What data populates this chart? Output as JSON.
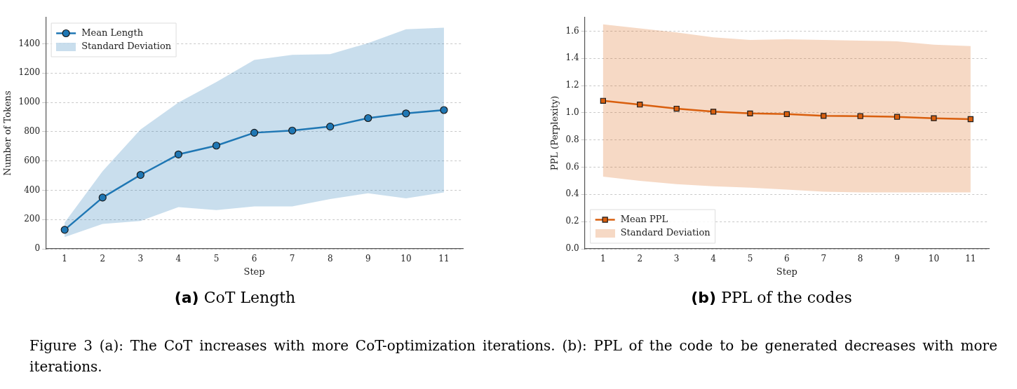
{
  "chart_data": [
    {
      "type": "line",
      "title": "(a) CoT Length",
      "xlabel": "Step",
      "ylabel": "Number of Tokens",
      "x": [
        1,
        2,
        3,
        4,
        5,
        6,
        7,
        8,
        9,
        10,
        11
      ],
      "series": [
        {
          "name": "Mean Length",
          "color": "#1f77b4",
          "marker": "circle",
          "values": [
            130,
            350,
            505,
            645,
            705,
            793,
            808,
            835,
            893,
            925,
            948
          ],
          "lower": [
            80,
            170,
            190,
            285,
            265,
            290,
            290,
            340,
            380,
            345,
            385
          ],
          "upper": [
            180,
            530,
            815,
            1000,
            1140,
            1290,
            1325,
            1330,
            1405,
            1500,
            1510
          ]
        }
      ],
      "xlim": [
        0.5,
        11.5
      ],
      "xticks": [
        1,
        2,
        3,
        4,
        5,
        6,
        7,
        8,
        9,
        10,
        11
      ],
      "ylim": [
        0,
        1580
      ],
      "yticks": [
        0,
        200,
        400,
        600,
        800,
        1000,
        1200,
        1400
      ],
      "grid": "y",
      "legend": "top left",
      "line_style": "solid",
      "annotations": [
        "Standard Deviation"
      ]
    },
    {
      "type": "line",
      "title": "(b) PPL of the codes",
      "xlabel": "Step",
      "ylabel": "PPL (Perplexity)",
      "x": [
        1,
        2,
        3,
        4,
        5,
        6,
        7,
        8,
        9,
        10,
        11
      ],
      "series": [
        {
          "name": "Mean PPL",
          "color": "#d95f0e",
          "marker": "square",
          "values": [
            1.088,
            1.06,
            1.03,
            1.008,
            0.995,
            0.99,
            0.977,
            0.975,
            0.97,
            0.96,
            0.953
          ],
          "lower": [
            0.53,
            0.5,
            0.475,
            0.46,
            0.45,
            0.435,
            0.42,
            0.415,
            0.415,
            0.415,
            0.415
          ],
          "upper": [
            1.65,
            1.62,
            1.59,
            1.555,
            1.535,
            1.54,
            1.535,
            1.53,
            1.525,
            1.5,
            1.49
          ]
        }
      ],
      "xlim": [
        0.5,
        11.5
      ],
      "xticks": [
        1,
        2,
        3,
        4,
        5,
        6,
        7,
        8,
        9,
        10,
        11
      ],
      "ylim": [
        0,
        1.7
      ],
      "yticks": [
        {
          "value": 0,
          "label": "0.0"
        },
        {
          "value": 0.2,
          "label": "0.2"
        },
        {
          "value": 0.4,
          "label": "0.4"
        },
        {
          "value": 0.6,
          "label": "0.6"
        },
        {
          "value": 0.8,
          "label": "0.8"
        },
        {
          "value": 1,
          "label": "1.0"
        },
        {
          "value": 1.2,
          "label": "1.2"
        },
        {
          "value": 1.4,
          "label": "1.4"
        },
        {
          "value": 1.6,
          "label": "1.6"
        }
      ],
      "grid": "y",
      "legend": "bottom left",
      "line_style": "solid",
      "annotations": [
        "Standard Deviation",
        "Figure 3 (a): The CoT increases with more CoT-optimization iterations. (b): PPL of the code to be generated decreases with more iterations."
      ]
    }
  ]
}
